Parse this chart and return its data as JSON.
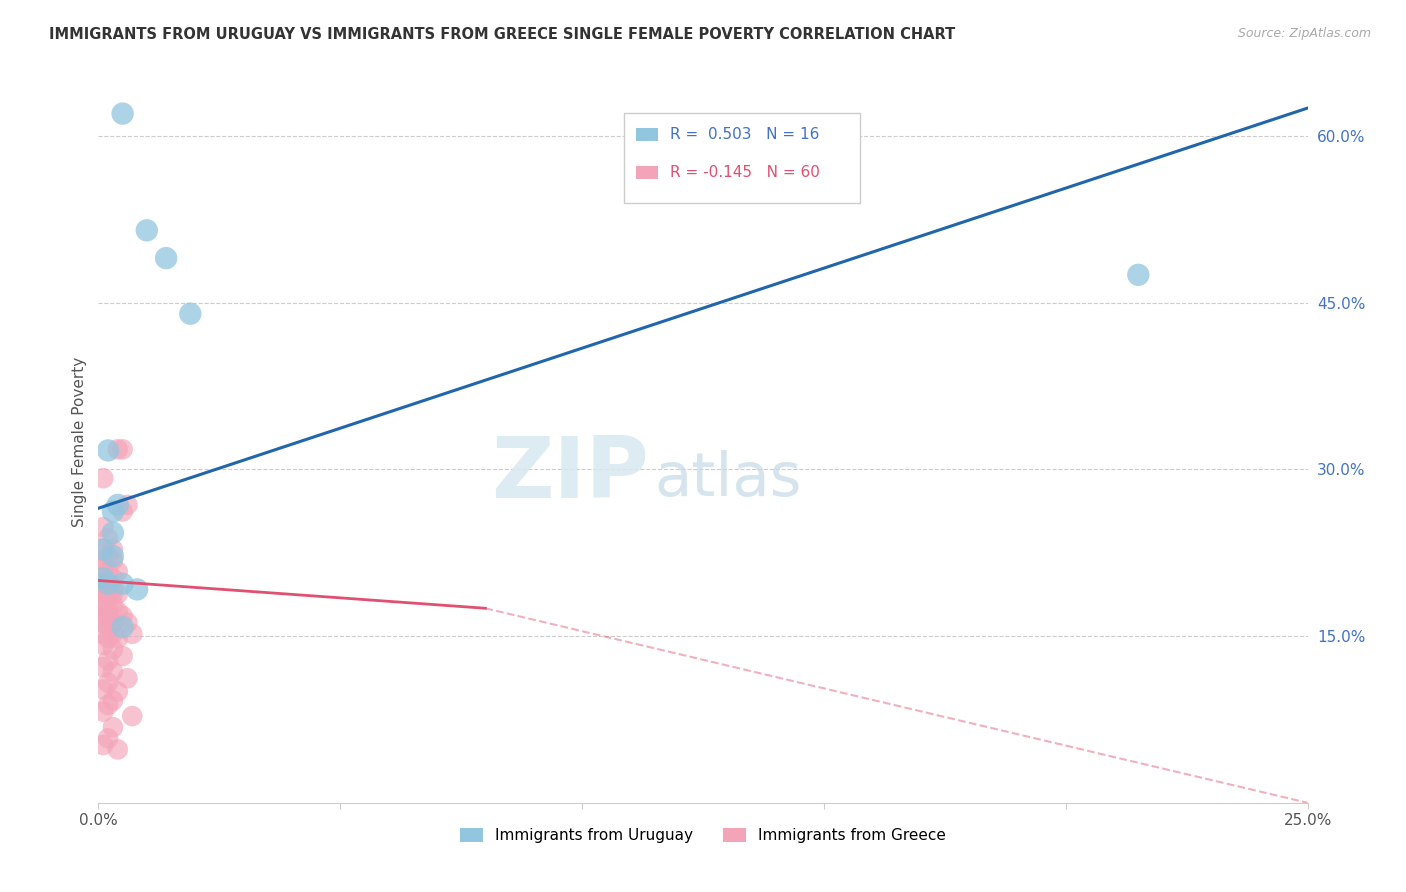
{
  "title": "IMMIGRANTS FROM URUGUAY VS IMMIGRANTS FROM GREECE SINGLE FEMALE POVERTY CORRELATION CHART",
  "source": "Source: ZipAtlas.com",
  "ylabel": "Single Female Poverty",
  "legend_label_blue": "Immigrants from Uruguay",
  "legend_label_pink": "Immigrants from Greece",
  "R_blue": 0.503,
  "N_blue": 16,
  "R_pink": -0.145,
  "N_pink": 60,
  "xlim": [
    0.0,
    0.25
  ],
  "ylim": [
    0.0,
    0.65
  ],
  "xticks": [
    0.0,
    0.05,
    0.1,
    0.15,
    0.2,
    0.25
  ],
  "yticks": [
    0.15,
    0.3,
    0.45,
    0.6
  ],
  "ytick_labels_right": [
    "15.0%",
    "30.0%",
    "45.0%",
    "60.0%"
  ],
  "xtick_labels": [
    "0.0%",
    "",
    "",
    "",
    "",
    "25.0%"
  ],
  "color_blue": "#92c5de",
  "color_pink": "#f4a4b8",
  "line_blue": "#2166ac",
  "line_pink": "#e05070",
  "watermark_zip": "ZIP",
  "watermark_atlas": "atlas",
  "blue_line_x": [
    0.0,
    0.25
  ],
  "blue_line_y": [
    0.265,
    0.625
  ],
  "pink_line_x0": 0.0,
  "pink_line_x_solid_end": 0.08,
  "pink_line_x_end": 0.25,
  "pink_line_y0": 0.2,
  "pink_line_y_solid_end": 0.175,
  "pink_line_y_end": 0.0,
  "blue_dots": [
    [
      0.005,
      0.62
    ],
    [
      0.01,
      0.515
    ],
    [
      0.014,
      0.49
    ],
    [
      0.019,
      0.44
    ],
    [
      0.002,
      0.317
    ],
    [
      0.003,
      0.262
    ],
    [
      0.004,
      0.268
    ],
    [
      0.003,
      0.243
    ],
    [
      0.001,
      0.228
    ],
    [
      0.003,
      0.222
    ],
    [
      0.001,
      0.202
    ],
    [
      0.002,
      0.197
    ],
    [
      0.005,
      0.197
    ],
    [
      0.008,
      0.192
    ],
    [
      0.005,
      0.158
    ],
    [
      0.215,
      0.475
    ]
  ],
  "pink_dots": [
    [
      0.001,
      0.292
    ],
    [
      0.004,
      0.318
    ],
    [
      0.005,
      0.318
    ],
    [
      0.006,
      0.268
    ],
    [
      0.005,
      0.262
    ],
    [
      0.001,
      0.248
    ],
    [
      0.002,
      0.238
    ],
    [
      0.001,
      0.228
    ],
    [
      0.003,
      0.228
    ],
    [
      0.002,
      0.222
    ],
    [
      0.001,
      0.218
    ],
    [
      0.003,
      0.218
    ],
    [
      0.001,
      0.212
    ],
    [
      0.002,
      0.208
    ],
    [
      0.004,
      0.208
    ],
    [
      0.003,
      0.202
    ],
    [
      0.001,
      0.198
    ],
    [
      0.002,
      0.198
    ],
    [
      0.001,
      0.192
    ],
    [
      0.003,
      0.192
    ],
    [
      0.002,
      0.188
    ],
    [
      0.001,
      0.188
    ],
    [
      0.003,
      0.188
    ],
    [
      0.004,
      0.188
    ],
    [
      0.001,
      0.182
    ],
    [
      0.002,
      0.182
    ],
    [
      0.003,
      0.178
    ],
    [
      0.001,
      0.178
    ],
    [
      0.002,
      0.172
    ],
    [
      0.004,
      0.172
    ],
    [
      0.001,
      0.168
    ],
    [
      0.002,
      0.168
    ],
    [
      0.005,
      0.168
    ],
    [
      0.003,
      0.162
    ],
    [
      0.001,
      0.162
    ],
    [
      0.006,
      0.162
    ],
    [
      0.002,
      0.158
    ],
    [
      0.001,
      0.152
    ],
    [
      0.003,
      0.152
    ],
    [
      0.007,
      0.152
    ],
    [
      0.004,
      0.148
    ],
    [
      0.002,
      0.148
    ],
    [
      0.001,
      0.142
    ],
    [
      0.003,
      0.138
    ],
    [
      0.005,
      0.132
    ],
    [
      0.002,
      0.128
    ],
    [
      0.001,
      0.122
    ],
    [
      0.003,
      0.118
    ],
    [
      0.006,
      0.112
    ],
    [
      0.002,
      0.108
    ],
    [
      0.001,
      0.102
    ],
    [
      0.004,
      0.1
    ],
    [
      0.003,
      0.092
    ],
    [
      0.002,
      0.088
    ],
    [
      0.001,
      0.082
    ],
    [
      0.007,
      0.078
    ],
    [
      0.003,
      0.068
    ],
    [
      0.002,
      0.058
    ],
    [
      0.001,
      0.052
    ],
    [
      0.004,
      0.048
    ]
  ]
}
